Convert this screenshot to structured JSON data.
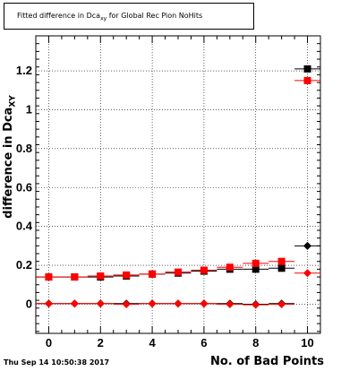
{
  "title": {
    "prefix": "Fitted difference in Dca",
    "sub": "xy",
    "suffix": " for Global Rec Pion NoHits"
  },
  "footer": {
    "date": "Thu Sep 14 10:50:38 2017"
  },
  "chart_data": {
    "type": "scatter",
    "title": "Fitted difference in Dca_xy for Global Rec Pion NoHits",
    "xlabel": "No. of Bad Points",
    "ylabel_main": "difference in Dca",
    "ylabel_sub": "XY",
    "xlim": [
      -0.5,
      10.5
    ],
    "ylim": [
      -0.15,
      1.38
    ],
    "x_ticks": [
      0,
      2,
      4,
      6,
      8,
      10
    ],
    "x_tick_labels": [
      "0",
      "2",
      "4",
      "6",
      "8",
      "10"
    ],
    "y_ticks": [
      0,
      0.2,
      0.4,
      0.6,
      0.8,
      1,
      1.2
    ],
    "y_tick_labels": [
      "0",
      "0.2",
      "0.4",
      "0.6",
      "0.8",
      "1",
      "1.2"
    ],
    "grid": true,
    "colors": {
      "black": "#000000",
      "red": "#ff0000"
    },
    "series": [
      {
        "marker": "square",
        "color": "#000000",
        "x": [
          0,
          1,
          2,
          3,
          4,
          5,
          6,
          7,
          8,
          9,
          10
        ],
        "y": [
          0.14,
          0.14,
          0.14,
          0.145,
          0.155,
          0.16,
          0.17,
          0.18,
          0.18,
          0.185,
          1.21
        ]
      },
      {
        "marker": "square",
        "color": "#ff0000",
        "x": [
          0,
          1,
          2,
          3,
          4,
          5,
          6,
          7,
          8,
          9,
          10
        ],
        "y": [
          0.14,
          0.14,
          0.145,
          0.15,
          0.155,
          0.165,
          0.175,
          0.19,
          0.21,
          0.22,
          1.15
        ]
      },
      {
        "marker": "diamond",
        "color": "#000000",
        "x": [
          0,
          1,
          2,
          3,
          4,
          5,
          6,
          7,
          8,
          9,
          10
        ],
        "y": [
          0.003,
          0.003,
          0.003,
          0.003,
          0.003,
          0.003,
          0.003,
          0.003,
          0.0,
          0.003,
          0.3
        ]
      },
      {
        "marker": "diamond",
        "color": "#ff0000",
        "x": [
          0,
          1,
          2,
          3,
          4,
          5,
          6,
          7,
          8,
          9,
          10
        ],
        "y": [
          0.003,
          0.003,
          0.003,
          0.0,
          0.003,
          0.003,
          0.003,
          0.0,
          -0.003,
          0.0,
          0.16
        ]
      }
    ]
  }
}
